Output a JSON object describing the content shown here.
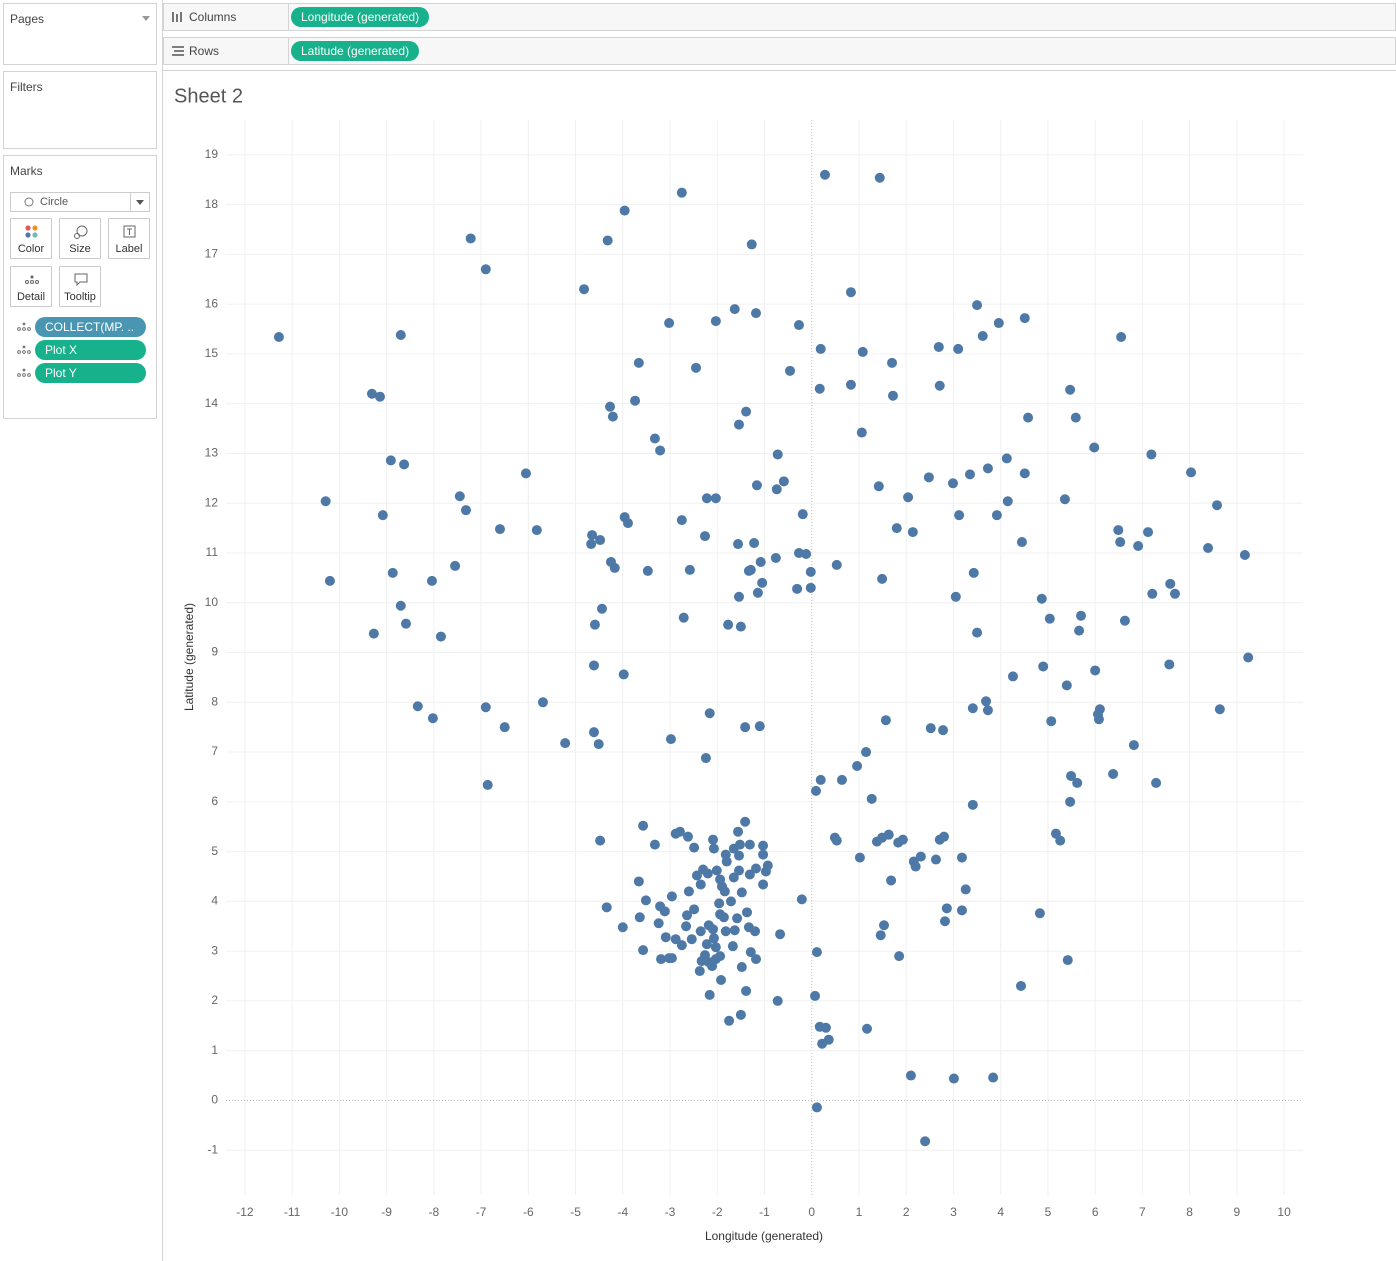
{
  "ui": {
    "pages": "Pages",
    "filters": "Filters",
    "marks": "Marks",
    "mark_type": "Circle",
    "buttons": [
      "Color",
      "Size",
      "Label",
      "Detail",
      "Tooltip"
    ],
    "mark_pills": [
      "COLLECT(MP. ..",
      "Plot X",
      "Plot Y"
    ],
    "columns": {
      "label": "Columns",
      "pill": "Longitude (generated)"
    },
    "rows": {
      "label": "Rows",
      "pill": "Latitude (generated)"
    }
  },
  "chart_data": {
    "type": "scatter",
    "title": "Sheet 2",
    "x_label": "Longitude (generated)",
    "y_label": "Latitude (generated)",
    "color": "#4e79a7",
    "grid": true,
    "zero_lines": true,
    "xlim": [
      -12.4,
      10.4
    ],
    "ylim": [
      -1.9,
      19.7
    ],
    "xticks": [
      -12,
      -11,
      -10,
      -9,
      -8,
      -7,
      -6,
      -5,
      -4,
      -3,
      -2,
      -1,
      0,
      1,
      2,
      3,
      4,
      5,
      6,
      7,
      8,
      9,
      10
    ],
    "yticks": [
      -1,
      0,
      1,
      2,
      3,
      4,
      5,
      6,
      7,
      8,
      9,
      10,
      11,
      12,
      13,
      14,
      15,
      16,
      17,
      18,
      19
    ],
    "x": [
      0.28,
      1.44,
      -2.75,
      -3.96,
      -7.22,
      -4.32,
      -1.27,
      -6.9,
      -4.82,
      0.83,
      -11.28,
      -8.7,
      -3.02,
      -2.03,
      -1.63,
      -1.18,
      -0.27,
      3.5,
      3.96,
      4.51,
      6.55,
      0.19,
      1.08,
      2.69,
      3.1,
      3.62,
      -3.66,
      -2.45,
      -0.46,
      1.7,
      -9.31,
      -9.14,
      -3.74,
      -4.27,
      -4.21,
      -1.39,
      -1.54,
      0.17,
      0.83,
      1.72,
      2.71,
      5.47,
      4.58,
      5.59,
      -3.32,
      -3.21,
      1.06,
      -0.72,
      -8.91,
      -8.63,
      -6.05,
      5.98,
      7.19,
      8.03,
      4.13,
      3.73,
      3.35,
      2.48,
      2.99,
      4.51,
      -10.29,
      -7.45,
      -7.32,
      -9.08,
      -6.6,
      -5.82,
      -3.96,
      -3.89,
      -2.75,
      -2.22,
      -2.03,
      -1.16,
      -0.59,
      -0.74,
      -0.19,
      1.42,
      2.04,
      4.15,
      5.36,
      8.58,
      3.12,
      3.92,
      1.8,
      2.14,
      -4.65,
      -4.48,
      -4.67,
      -2.26,
      -1.56,
      -1.22,
      6.49,
      7.12,
      6.53,
      6.91,
      4.45,
      8.39,
      9.17,
      -10.2,
      -8.87,
      -8.04,
      -7.55,
      -4.25,
      -4.17,
      -3.47,
      -2.58,
      -1.33,
      -1.29,
      -1.08,
      -0.76,
      -0.27,
      -0.12,
      -0.02,
      0.53,
      1.49,
      3.43,
      -1.05,
      -8.7,
      -8.59,
      -9.27,
      -7.85,
      -4.44,
      -4.59,
      -2.71,
      -1.54,
      -1.14,
      -0.31,
      -0.02,
      3.05,
      4.87,
      5.7,
      5.66,
      5.04,
      6.63,
      7.21,
      7.59,
      7.69,
      3.5,
      -1.77,
      -1.5,
      -4.61,
      -3.98,
      4.26,
      4.9,
      5.4,
      6.0,
      7.57,
      9.24,
      -8.34,
      -8.02,
      -6.9,
      -6.5,
      -5.69,
      -5.22,
      -4.61,
      -4.51,
      -2.98,
      -2.16,
      -2.24,
      -1.41,
      -1.1,
      1.57,
      2.52,
      2.78,
      3.69,
      3.41,
      3.73,
      5.07,
      6.1,
      6.06,
      6.08,
      8.64,
      6.82,
      -6.86,
      1.15,
      0.96,
      0.19,
      0.09,
      0.64,
      1.27,
      5.49,
      5.62,
      6.38,
      7.29,
      3.41,
      5.47,
      -4.48,
      -3.57,
      -3.32,
      -2.88,
      -2.79,
      -2.62,
      -2.49,
      -2.09,
      -2.07,
      -1.56,
      -1.41,
      -1.52,
      -1.82,
      -1.65,
      -1.54,
      -1.31,
      -1.03,
      -1.03,
      -0.93,
      -0.97,
      -1.18,
      -2.3,
      -2.2,
      -2.01,
      -1.94,
      -2.35,
      -2.43,
      -1.8,
      -1.65,
      -1.54,
      -1.31,
      -1.03,
      -1.9,
      -1.84,
      -3.66,
      -3.51,
      -2.96,
      -2.6,
      -3.21,
      -3.11,
      -2.49,
      -2.64,
      -1.96,
      -1.48,
      -1.71,
      -1.58,
      -1.37,
      -1.33,
      -1.94,
      -1.86,
      -2.18,
      -2.35,
      -2.09,
      -1.82,
      -1.63,
      -2.07,
      -2.22,
      -2.03,
      -2.26,
      -1.94,
      -1.67,
      -2.66,
      -2.54,
      -2.88,
      -2.75,
      -3.09,
      -3.24,
      -3.64,
      -4.0,
      -4.34,
      -3.57,
      -3.19,
      -3.02,
      -2.96,
      -2.33,
      -2.18,
      -2.11,
      -2.37,
      -2.03,
      -1.48,
      -1.29,
      -1.18,
      -1.2,
      -0.67,
      -1.92,
      -2.16,
      -1.39,
      -1.75,
      -1.5,
      -0.72,
      0.49,
      0.53,
      1.49,
      1.63,
      1.38,
      1.83,
      1.93,
      2.71,
      2.8,
      2.31,
      2.16,
      2.2,
      2.63,
      1.02,
      3.18,
      1.68,
      3.26,
      -0.21,
      2.86,
      3.18,
      2.82,
      1.53,
      1.46,
      4.83,
      5.42,
      0.11,
      1.85,
      4.43,
      0.07,
      0.17,
      0.3,
      1.17,
      0.36,
      0.22,
      2.1,
      3.01,
      3.84,
      0.11,
      2.4,
      5.17,
      5.26
    ],
    "values": [
      18.6,
      18.54,
      18.24,
      17.88,
      17.32,
      17.28,
      17.2,
      16.7,
      16.3,
      16.24,
      15.34,
      15.38,
      15.62,
      15.66,
      15.9,
      15.82,
      15.58,
      15.98,
      15.62,
      15.72,
      15.34,
      15.1,
      15.04,
      15.14,
      15.1,
      15.36,
      14.82,
      14.72,
      14.66,
      14.82,
      14.2,
      14.14,
      14.06,
      13.94,
      13.74,
      13.84,
      13.58,
      14.3,
      14.38,
      14.16,
      14.36,
      14.28,
      13.72,
      13.72,
      13.3,
      13.06,
      13.42,
      12.98,
      12.86,
      12.78,
      12.6,
      13.12,
      12.98,
      12.62,
      12.9,
      12.7,
      12.58,
      12.52,
      12.4,
      12.6,
      12.04,
      12.14,
      11.86,
      11.76,
      11.48,
      11.46,
      11.72,
      11.6,
      11.66,
      12.1,
      12.1,
      12.36,
      12.44,
      12.28,
      11.78,
      12.34,
      12.12,
      12.04,
      12.08,
      11.96,
      11.76,
      11.76,
      11.5,
      11.42,
      11.36,
      11.26,
      11.18,
      11.34,
      11.18,
      11.2,
      11.46,
      11.42,
      11.22,
      11.14,
      11.22,
      11.1,
      10.96,
      10.44,
      10.6,
      10.44,
      10.74,
      10.82,
      10.7,
      10.64,
      10.66,
      10.64,
      10.66,
      10.82,
      10.9,
      11.0,
      10.98,
      10.62,
      10.76,
      10.48,
      10.6,
      10.4,
      9.94,
      9.58,
      9.38,
      9.32,
      9.88,
      9.56,
      9.7,
      10.12,
      10.2,
      10.28,
      10.3,
      10.12,
      10.08,
      9.74,
      9.44,
      9.68,
      9.64,
      10.18,
      10.38,
      10.18,
      9.4,
      9.56,
      9.52,
      8.74,
      8.56,
      8.52,
      8.72,
      8.34,
      8.64,
      8.76,
      8.9,
      7.92,
      7.68,
      7.9,
      7.5,
      8.0,
      7.18,
      7.4,
      7.16,
      7.26,
      7.78,
      6.88,
      7.5,
      7.52,
      7.64,
      7.48,
      7.44,
      8.02,
      7.88,
      7.84,
      7.62,
      7.86,
      7.76,
      7.66,
      7.86,
      7.14,
      6.34,
      7.0,
      6.72,
      6.44,
      6.22,
      6.44,
      6.06,
      6.52,
      6.38,
      6.56,
      6.38,
      5.94,
      6.0,
      5.22,
      5.52,
      5.14,
      5.36,
      5.4,
      5.3,
      5.08,
      5.24,
      5.06,
      5.4,
      5.6,
      5.14,
      4.94,
      5.06,
      4.92,
      5.14,
      5.12,
      4.94,
      4.72,
      4.6,
      4.66,
      4.64,
      4.56,
      4.62,
      4.44,
      4.34,
      4.52,
      4.8,
      4.48,
      4.62,
      4.54,
      4.34,
      4.3,
      4.2,
      4.4,
      4.02,
      4.1,
      4.2,
      3.9,
      3.8,
      3.84,
      3.72,
      3.96,
      4.18,
      4.0,
      3.66,
      3.78,
      3.48,
      3.74,
      3.68,
      3.52,
      3.4,
      3.44,
      3.4,
      3.42,
      3.26,
      3.14,
      3.08,
      2.92,
      2.9,
      3.1,
      3.5,
      3.24,
      3.24,
      3.12,
      3.28,
      3.56,
      3.68,
      3.48,
      3.88,
      3.02,
      2.84,
      2.86,
      2.86,
      2.8,
      2.78,
      2.7,
      2.6,
      2.84,
      2.68,
      2.98,
      2.84,
      3.4,
      3.34,
      2.42,
      2.12,
      2.2,
      1.6,
      1.72,
      2.0,
      5.28,
      5.22,
      5.28,
      5.34,
      5.2,
      5.18,
      5.24,
      5.24,
      5.3,
      4.9,
      4.8,
      4.7,
      4.84,
      4.88,
      4.88,
      4.42,
      4.24,
      4.04,
      3.86,
      3.82,
      3.6,
      3.52,
      3.32,
      3.76,
      2.82,
      2.98,
      2.9,
      2.3,
      2.1,
      1.48,
      1.46,
      1.44,
      1.22,
      1.14,
      0.5,
      0.44,
      0.46,
      -0.14,
      -0.82,
      5.36,
      5.22
    ]
  }
}
